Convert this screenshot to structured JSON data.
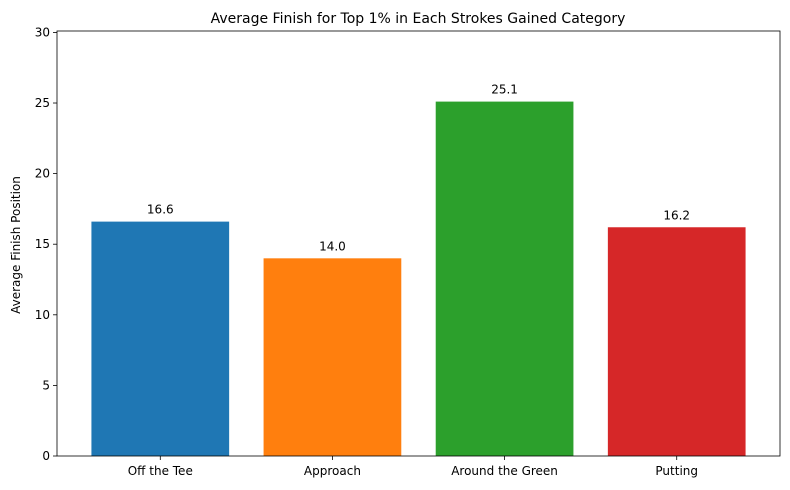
{
  "chart_data": {
    "type": "bar",
    "title": "Average Finish for Top 1% in Each Strokes Gained Category",
    "xlabel": "",
    "ylabel": "Average Finish Position",
    "categories": [
      "Off the Tee",
      "Approach",
      "Around the Green",
      "Putting"
    ],
    "values": [
      16.6,
      14.0,
      25.1,
      16.2
    ],
    "data_labels": [
      "16.6",
      "14.0",
      "25.1",
      "16.2"
    ],
    "colors": [
      "#1f77b4",
      "#ff7f0e",
      "#2ca02c",
      "#d62728"
    ],
    "ylim": [
      0,
      30.1
    ],
    "yticks": [
      0,
      5,
      10,
      15,
      20,
      25,
      30
    ],
    "grid": false,
    "legend": "none"
  }
}
